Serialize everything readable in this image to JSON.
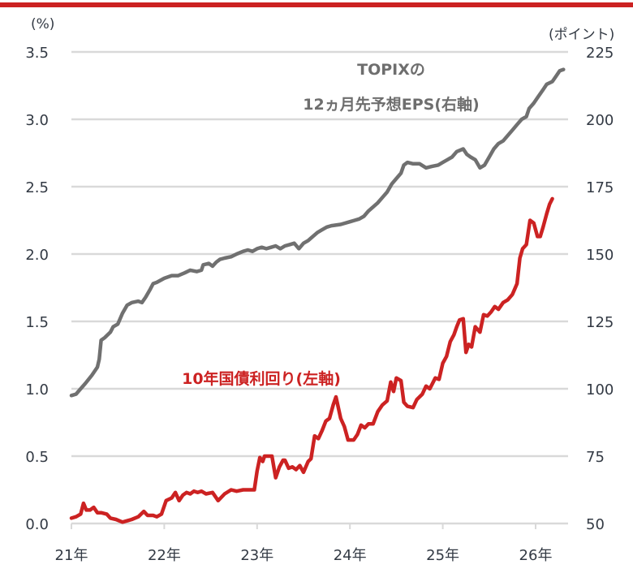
{
  "chart_data": {
    "type": "line",
    "title": "",
    "xlabel": "",
    "ylabel_left": "(%)",
    "ylabel_right": "(ポイント)",
    "x_ticks": [
      "21年",
      "22年",
      "23年",
      "24年",
      "25年",
      "26年"
    ],
    "x_range": [
      2021.0,
      2026.35
    ],
    "y_left": {
      "ticks": [
        "0.0",
        "0.5",
        "1.0",
        "1.5",
        "2.0",
        "2.5",
        "3.0",
        "3.5"
      ],
      "ylim": [
        0.0,
        3.5
      ]
    },
    "y_right": {
      "ticks": [
        "50",
        "75",
        "100",
        "125",
        "150",
        "175",
        "200",
        "225"
      ],
      "ylim": [
        50,
        225
      ]
    },
    "grid": "horizontal",
    "series": [
      {
        "name": "TOPIXの12ヵ月先予想EPS(右軸)",
        "label_line1": "TOPIXの",
        "label_line2": "12ヵ月先予想EPS(右軸)",
        "axis": "right",
        "color": "#707070",
        "points": [
          [
            2021.0,
            97.5
          ],
          [
            2021.05,
            98
          ],
          [
            2021.1,
            100
          ],
          [
            2021.15,
            102
          ],
          [
            2021.22,
            105
          ],
          [
            2021.28,
            108
          ],
          [
            2021.3,
            111
          ],
          [
            2021.32,
            118
          ],
          [
            2021.36,
            119
          ],
          [
            2021.42,
            121
          ],
          [
            2021.45,
            123
          ],
          [
            2021.5,
            124
          ],
          [
            2021.55,
            128
          ],
          [
            2021.6,
            131
          ],
          [
            2021.65,
            132
          ],
          [
            2021.72,
            132.5
          ],
          [
            2021.76,
            132
          ],
          [
            2021.8,
            134
          ],
          [
            2021.85,
            137
          ],
          [
            2021.88,
            139
          ],
          [
            2021.92,
            139.5
          ],
          [
            2022.0,
            141
          ],
          [
            2022.08,
            142
          ],
          [
            2022.15,
            142
          ],
          [
            2022.22,
            143
          ],
          [
            2022.28,
            144
          ],
          [
            2022.35,
            143.5
          ],
          [
            2022.4,
            144
          ],
          [
            2022.42,
            146
          ],
          [
            2022.48,
            146.5
          ],
          [
            2022.52,
            145.5
          ],
          [
            2022.56,
            147
          ],
          [
            2022.6,
            148
          ],
          [
            2022.65,
            148.5
          ],
          [
            2022.72,
            149
          ],
          [
            2022.78,
            150
          ],
          [
            2022.85,
            151
          ],
          [
            2022.9,
            151.5
          ],
          [
            2022.95,
            151
          ],
          [
            2023.0,
            152
          ],
          [
            2023.05,
            152.5
          ],
          [
            2023.1,
            152
          ],
          [
            2023.15,
            152.5
          ],
          [
            2023.2,
            153
          ],
          [
            2023.25,
            152
          ],
          [
            2023.3,
            153
          ],
          [
            2023.35,
            153.5
          ],
          [
            2023.4,
            154
          ],
          [
            2023.45,
            152
          ],
          [
            2023.5,
            154
          ],
          [
            2023.55,
            155
          ],
          [
            2023.6,
            156.5
          ],
          [
            2023.65,
            158
          ],
          [
            2023.7,
            159
          ],
          [
            2023.75,
            160
          ],
          [
            2023.8,
            160.5
          ],
          [
            2023.9,
            161
          ],
          [
            2024.0,
            162
          ],
          [
            2024.05,
            162.5
          ],
          [
            2024.1,
            163
          ],
          [
            2024.15,
            164
          ],
          [
            2024.2,
            166
          ],
          [
            2024.25,
            167.5
          ],
          [
            2024.3,
            169
          ],
          [
            2024.35,
            171
          ],
          [
            2024.4,
            173
          ],
          [
            2024.45,
            176
          ],
          [
            2024.5,
            178
          ],
          [
            2024.55,
            180
          ],
          [
            2024.58,
            183
          ],
          [
            2024.62,
            184
          ],
          [
            2024.68,
            183.5
          ],
          [
            2024.75,
            183.5
          ],
          [
            2024.82,
            182
          ],
          [
            2024.88,
            182.5
          ],
          [
            2024.95,
            183
          ],
          [
            2025.0,
            184
          ],
          [
            2025.05,
            185
          ],
          [
            2025.1,
            186
          ],
          [
            2025.15,
            188
          ],
          [
            2025.22,
            189
          ],
          [
            2025.26,
            187
          ],
          [
            2025.3,
            186
          ],
          [
            2025.35,
            185
          ],
          [
            2025.4,
            182
          ],
          [
            2025.45,
            183
          ],
          [
            2025.5,
            186
          ],
          [
            2025.55,
            189
          ],
          [
            2025.6,
            191
          ],
          [
            2025.65,
            192
          ],
          [
            2025.7,
            194
          ],
          [
            2025.75,
            196
          ],
          [
            2025.8,
            198
          ],
          [
            2025.85,
            200
          ],
          [
            2025.9,
            201
          ],
          [
            2025.93,
            204
          ],
          [
            2025.98,
            206
          ],
          [
            2026.02,
            208
          ],
          [
            2026.08,
            211
          ],
          [
            2026.12,
            213
          ],
          [
            2026.18,
            214
          ],
          [
            2026.22,
            216
          ],
          [
            2026.26,
            218
          ],
          [
            2026.3,
            218.5
          ]
        ]
      },
      {
        "name": "10年国債利回り(左軸)",
        "label_line1": "10年国債利回り(左軸)",
        "axis": "left",
        "color": "#cc2222",
        "points": [
          [
            2021.0,
            0.04
          ],
          [
            2021.05,
            0.05
          ],
          [
            2021.1,
            0.07
          ],
          [
            2021.13,
            0.15
          ],
          [
            2021.16,
            0.1
          ],
          [
            2021.2,
            0.1
          ],
          [
            2021.24,
            0.12
          ],
          [
            2021.28,
            0.08
          ],
          [
            2021.32,
            0.08
          ],
          [
            2021.38,
            0.07
          ],
          [
            2021.42,
            0.04
          ],
          [
            2021.48,
            0.03
          ],
          [
            2021.55,
            0.01
          ],
          [
            2021.6,
            0.02
          ],
          [
            2021.65,
            0.03
          ],
          [
            2021.72,
            0.05
          ],
          [
            2021.78,
            0.09
          ],
          [
            2021.82,
            0.06
          ],
          [
            2021.88,
            0.06
          ],
          [
            2021.92,
            0.05
          ],
          [
            2021.97,
            0.07
          ],
          [
            2022.02,
            0.17
          ],
          [
            2022.08,
            0.19
          ],
          [
            2022.12,
            0.23
          ],
          [
            2022.16,
            0.17
          ],
          [
            2022.2,
            0.21
          ],
          [
            2022.24,
            0.23
          ],
          [
            2022.28,
            0.22
          ],
          [
            2022.32,
            0.24
          ],
          [
            2022.36,
            0.23
          ],
          [
            2022.4,
            0.24
          ],
          [
            2022.45,
            0.22
          ],
          [
            2022.52,
            0.23
          ],
          [
            2022.58,
            0.17
          ],
          [
            2022.65,
            0.22
          ],
          [
            2022.72,
            0.25
          ],
          [
            2022.78,
            0.24
          ],
          [
            2022.85,
            0.25
          ],
          [
            2022.92,
            0.25
          ],
          [
            2022.97,
            0.25
          ],
          [
            2023.0,
            0.39
          ],
          [
            2023.03,
            0.49
          ],
          [
            2023.06,
            0.46
          ],
          [
            2023.08,
            0.5
          ],
          [
            2023.12,
            0.5
          ],
          [
            2023.16,
            0.5
          ],
          [
            2023.2,
            0.34
          ],
          [
            2023.24,
            0.42
          ],
          [
            2023.28,
            0.47
          ],
          [
            2023.3,
            0.47
          ],
          [
            2023.34,
            0.41
          ],
          [
            2023.38,
            0.42
          ],
          [
            2023.42,
            0.4
          ],
          [
            2023.46,
            0.43
          ],
          [
            2023.5,
            0.38
          ],
          [
            2023.55,
            0.46
          ],
          [
            2023.58,
            0.48
          ],
          [
            2023.62,
            0.65
          ],
          [
            2023.66,
            0.63
          ],
          [
            2023.7,
            0.69
          ],
          [
            2023.74,
            0.76
          ],
          [
            2023.78,
            0.78
          ],
          [
            2023.82,
            0.88
          ],
          [
            2023.85,
            0.94
          ],
          [
            2023.9,
            0.78
          ],
          [
            2023.94,
            0.72
          ],
          [
            2023.98,
            0.62
          ],
          [
            2024.04,
            0.62
          ],
          [
            2024.08,
            0.66
          ],
          [
            2024.12,
            0.73
          ],
          [
            2024.16,
            0.71
          ],
          [
            2024.2,
            0.74
          ],
          [
            2024.25,
            0.74
          ],
          [
            2024.3,
            0.83
          ],
          [
            2024.35,
            0.88
          ],
          [
            2024.4,
            0.91
          ],
          [
            2024.44,
            1.05
          ],
          [
            2024.47,
            0.98
          ],
          [
            2024.5,
            1.08
          ],
          [
            2024.55,
            1.06
          ],
          [
            2024.58,
            0.9
          ],
          [
            2024.62,
            0.87
          ],
          [
            2024.68,
            0.86
          ],
          [
            2024.72,
            0.92
          ],
          [
            2024.78,
            0.96
          ],
          [
            2024.82,
            1.02
          ],
          [
            2024.86,
            1.0
          ],
          [
            2024.92,
            1.08
          ],
          [
            2024.96,
            1.07
          ],
          [
            2025.0,
            1.19
          ],
          [
            2025.04,
            1.24
          ],
          [
            2025.08,
            1.35
          ],
          [
            2025.12,
            1.4
          ],
          [
            2025.15,
            1.46
          ],
          [
            2025.18,
            1.51
          ],
          [
            2025.22,
            1.52
          ],
          [
            2025.25,
            1.27
          ],
          [
            2025.28,
            1.33
          ],
          [
            2025.31,
            1.31
          ],
          [
            2025.35,
            1.46
          ],
          [
            2025.4,
            1.42
          ],
          [
            2025.44,
            1.55
          ],
          [
            2025.48,
            1.54
          ],
          [
            2025.52,
            1.57
          ],
          [
            2025.56,
            1.61
          ],
          [
            2025.6,
            1.59
          ],
          [
            2025.65,
            1.64
          ],
          [
            2025.7,
            1.66
          ],
          [
            2025.75,
            1.7
          ],
          [
            2025.8,
            1.78
          ],
          [
            2025.83,
            1.97
          ],
          [
            2025.86,
            2.04
          ],
          [
            2025.9,
            2.07
          ],
          [
            2025.94,
            2.25
          ],
          [
            2025.98,
            2.23
          ],
          [
            2026.02,
            2.13
          ],
          [
            2026.05,
            2.13
          ],
          [
            2026.08,
            2.2
          ],
          [
            2026.12,
            2.3
          ],
          [
            2026.15,
            2.37
          ],
          [
            2026.18,
            2.41
          ]
        ]
      }
    ]
  },
  "header": {
    "accent_bar_color": "#cc2222"
  },
  "axes": {
    "left_unit": "(%)",
    "right_unit": "(ポイント)"
  }
}
